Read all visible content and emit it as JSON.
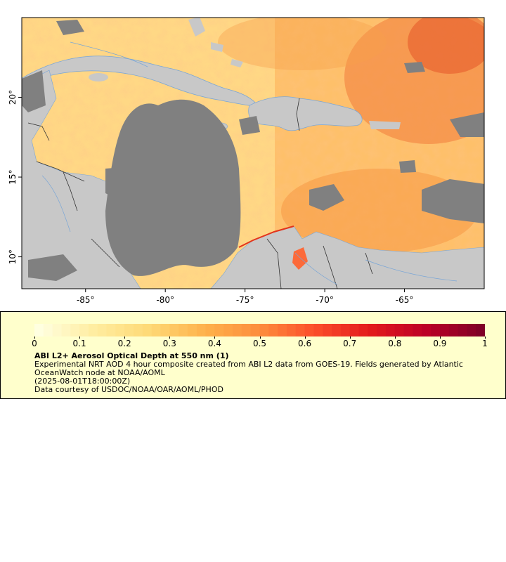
{
  "map": {
    "lon_range": [
      -89,
      -60
    ],
    "lat_range": [
      8,
      25
    ],
    "lon_ticks": [
      {
        "value": -85,
        "label": "-85°"
      },
      {
        "value": -80,
        "label": "-80°"
      },
      {
        "value": -75,
        "label": "-75°"
      },
      {
        "value": -70,
        "label": "-70°"
      },
      {
        "value": -65,
        "label": "-65°"
      }
    ],
    "lat_ticks": [
      {
        "value": 10,
        "label": "10°"
      },
      {
        "value": 15,
        "label": "15°"
      },
      {
        "value": 20,
        "label": "20°"
      }
    ],
    "colors": {
      "land": "#c8c8c8",
      "no_data": "#808080",
      "coast": "#7aa6d6",
      "border": "#333333"
    }
  },
  "colorbar": {
    "range": [
      0,
      1
    ],
    "colors": [
      "#ffffe0",
      "#ffeda0",
      "#fed976",
      "#feb24c",
      "#fd8d3c",
      "#fc4e2a",
      "#e31a1c",
      "#bd0026",
      "#800026"
    ],
    "tick_labels": [
      "0",
      "0.1",
      "0.2",
      "0.3",
      "0.4",
      "0.5",
      "0.6",
      "0.7",
      "0.8",
      "0.9",
      "1"
    ]
  },
  "legend": {
    "title": "ABI L2+ Aerosol Optical Depth at 550 nm (1)",
    "description": "Experimental NRT AOD 4 hour composite created from ABI L2 data from GOES-19. Fields generated by Atlantic OceanWatch node at NOAA/AOML",
    "timestamp": "(2025-08-01T18:00:00Z)",
    "credit": "Data courtesy of USDOC/NOAA/OAR/AOML/PHOD"
  }
}
